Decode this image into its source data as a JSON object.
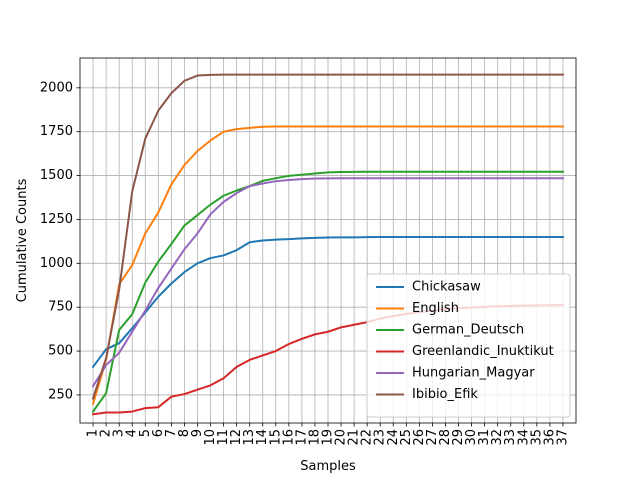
{
  "chart_data": {
    "type": "line",
    "title": "",
    "xlabel": "Samples",
    "ylabel": "Cumulative Counts",
    "x": [
      "1",
      "2",
      "3",
      "4",
      "5",
      "6",
      "7",
      "8",
      "9",
      "10",
      "11",
      "12",
      "13",
      "14",
      "15",
      "16",
      "17",
      "18",
      "19",
      "20",
      "21",
      "22",
      "23",
      "24",
      "25",
      "26",
      "27",
      "28",
      "29",
      "30",
      "31",
      "32",
      "33",
      "34",
      "35",
      "36",
      "37"
    ],
    "xlim": [
      0,
      38
    ],
    "ylim": [
      90,
      2170
    ],
    "yticks": [
      250,
      500,
      750,
      1000,
      1250,
      1500,
      1750,
      2000
    ],
    "ytick_labels": [
      "250",
      "500",
      "750",
      "1000",
      "1250",
      "1500",
      "1750",
      "2000"
    ],
    "grid": true,
    "legend_position": "lower-right",
    "series": [
      {
        "name": "Chickasaw",
        "color": "#1f77b4",
        "values": [
          410,
          510,
          545,
          630,
          720,
          810,
          885,
          950,
          1000,
          1030,
          1045,
          1075,
          1120,
          1130,
          1135,
          1138,
          1142,
          1145,
          1147,
          1148,
          1148,
          1149,
          1150,
          1150,
          1150,
          1150,
          1150,
          1150,
          1150,
          1150,
          1150,
          1150,
          1150,
          1150,
          1150,
          1150,
          1150
        ]
      },
      {
        "name": "English",
        "color": "#ff7f0e",
        "values": [
          200,
          450,
          880,
          990,
          1170,
          1290,
          1450,
          1560,
          1640,
          1700,
          1750,
          1765,
          1772,
          1778,
          1780,
          1780,
          1780,
          1780,
          1780,
          1780,
          1780,
          1780,
          1780,
          1780,
          1780,
          1780,
          1780,
          1780,
          1780,
          1780,
          1780,
          1780,
          1780,
          1780,
          1780,
          1780,
          1780
        ]
      },
      {
        "name": "German_Deutsch",
        "color": "#2ca02c",
        "values": [
          155,
          260,
          620,
          710,
          890,
          1010,
          1110,
          1215,
          1275,
          1335,
          1385,
          1415,
          1440,
          1470,
          1485,
          1498,
          1505,
          1512,
          1518,
          1520,
          1521,
          1522,
          1522,
          1522,
          1522,
          1522,
          1522,
          1522,
          1522,
          1522,
          1522,
          1522,
          1522,
          1522,
          1522,
          1522,
          1522
        ]
      },
      {
        "name": "Greenlandic_Inuktikut",
        "color": "#d62728",
        "values": [
          140,
          150,
          150,
          155,
          175,
          180,
          240,
          255,
          280,
          305,
          345,
          410,
          450,
          475,
          500,
          540,
          570,
          595,
          610,
          635,
          650,
          665,
          685,
          700,
          712,
          722,
          730,
          738,
          744,
          748,
          752,
          755,
          757,
          759,
          760,
          761,
          762
        ]
      },
      {
        "name": "Hungarian_Magyar",
        "color": "#9467bd",
        "values": [
          300,
          420,
          490,
          610,
          730,
          860,
          970,
          1080,
          1170,
          1280,
          1350,
          1400,
          1440,
          1455,
          1468,
          1475,
          1480,
          1483,
          1484,
          1485,
          1485,
          1485,
          1485,
          1485,
          1485,
          1485,
          1485,
          1485,
          1485,
          1485,
          1485,
          1485,
          1485,
          1485,
          1485,
          1485,
          1485
        ]
      },
      {
        "name": "Ibibio_Efik",
        "color": "#8c564b",
        "values": [
          230,
          460,
          850,
          1410,
          1710,
          1870,
          1970,
          2040,
          2070,
          2074,
          2075,
          2075,
          2075,
          2075,
          2075,
          2075,
          2075,
          2075,
          2075,
          2075,
          2075,
          2075,
          2075,
          2075,
          2075,
          2075,
          2075,
          2075,
          2075,
          2075,
          2075,
          2075,
          2075,
          2075,
          2075,
          2075,
          2075
        ]
      }
    ]
  }
}
